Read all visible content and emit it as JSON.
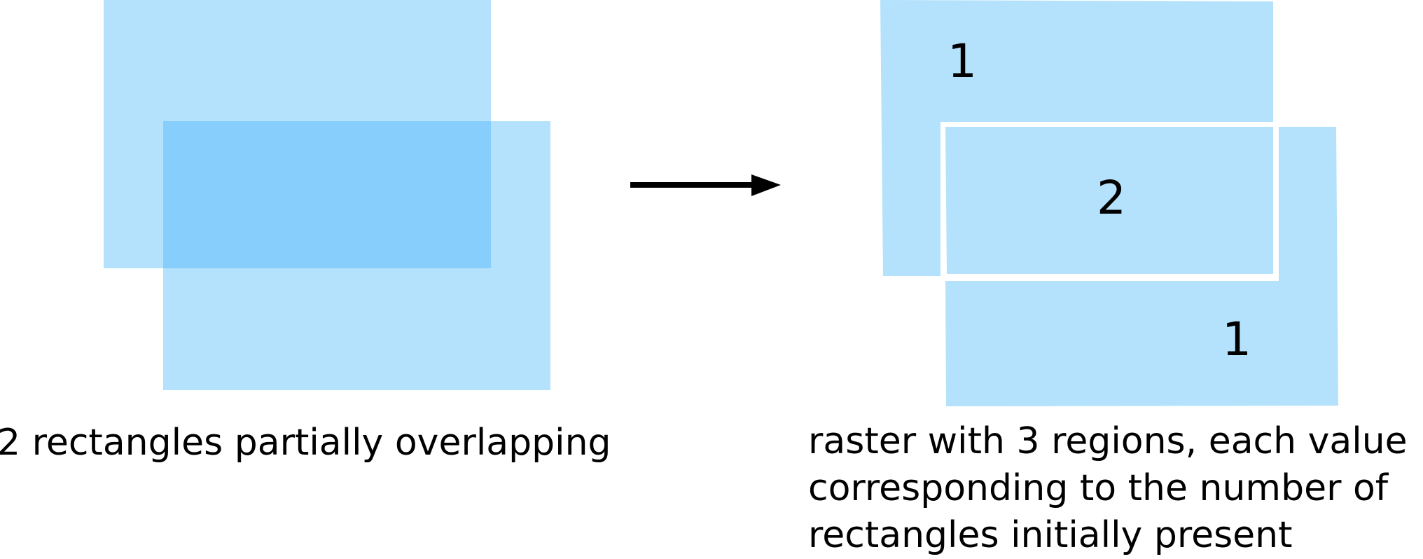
{
  "before": {
    "caption": "2 rectangles partially overlapping",
    "shape_count": 2
  },
  "after": {
    "caption_lines": [
      "raster with 3 regions, each value",
      "corresponding to the number of",
      "rectangles initially present"
    ],
    "regions": [
      {
        "name": "top-region",
        "value": "1"
      },
      {
        "name": "overlap-region",
        "value": "2"
      },
      {
        "name": "bottom-region",
        "value": "1"
      }
    ]
  },
  "transition": {
    "icon": "arrow-right-icon"
  },
  "colors": {
    "rectangle_fill": "#b4e2fc",
    "overlap_fill": "#87cefc",
    "region_border": "#ffffff",
    "arrow": "#000000",
    "text": "#000000"
  }
}
